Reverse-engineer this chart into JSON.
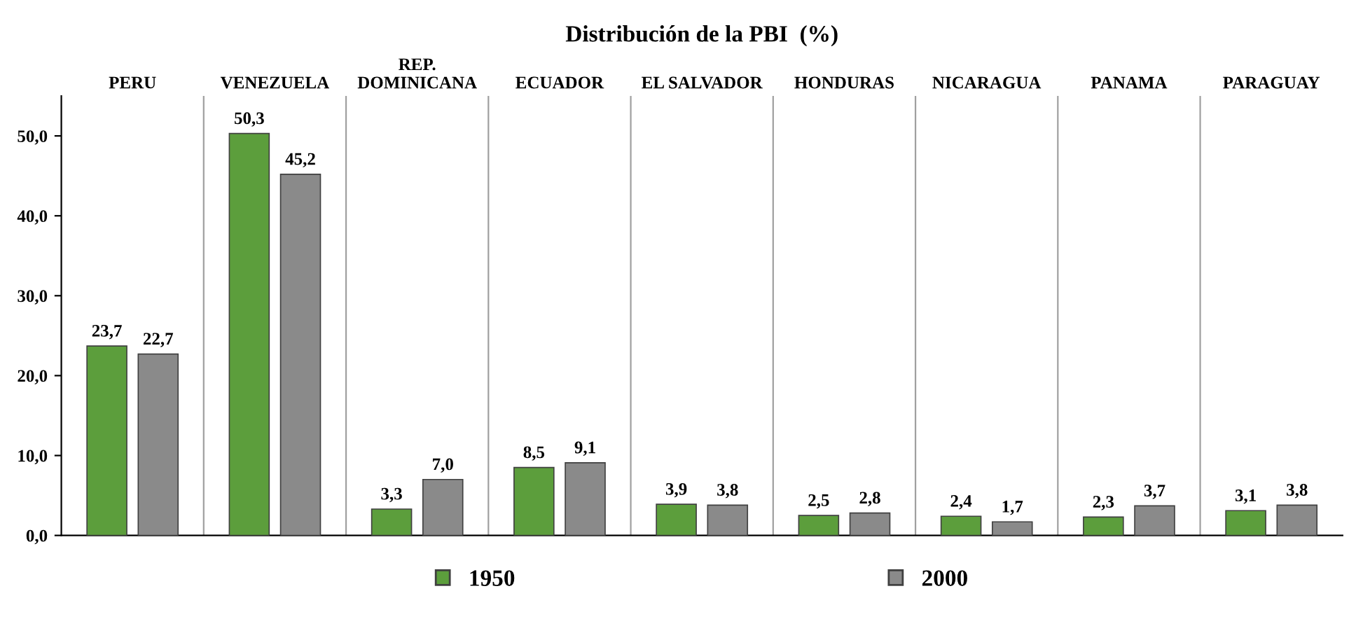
{
  "chart_data": {
    "type": "bar",
    "title": "Distribución de la PBI  (%)",
    "categories": [
      "PERU",
      "VENEZUELA",
      "REP.\nDOMINICANA",
      "ECUADOR",
      "EL SALVADOR",
      "HONDURAS",
      "NICARAGUA",
      "PANAMA",
      "PARAGUAY"
    ],
    "series": [
      {
        "name": "1950",
        "color": "#5c9e3c",
        "values": [
          23.7,
          50.3,
          3.3,
          8.5,
          3.9,
          2.5,
          2.4,
          2.3,
          3.1
        ],
        "value_labels": [
          "23,7",
          "50,3",
          "3,3",
          "8,5",
          "3,9",
          "2,5",
          "2,4",
          "2,3",
          "3,1"
        ]
      },
      {
        "name": "2000",
        "color": "#8a8a8a",
        "values": [
          22.7,
          45.2,
          7.0,
          9.1,
          3.8,
          2.8,
          1.7,
          3.7,
          3.8
        ],
        "value_labels": [
          "22,7",
          "45,2",
          "7,0",
          "9,1",
          "3,8",
          "2,8",
          "1,7",
          "3,7",
          "3,8"
        ]
      }
    ],
    "ylim": [
      0,
      55
    ],
    "yticks": [
      {
        "value": 0,
        "label": "0,0"
      },
      {
        "value": 10,
        "label": "10,0"
      },
      {
        "value": 20,
        "label": "20,0"
      },
      {
        "value": 30,
        "label": "30,0"
      },
      {
        "value": 40,
        "label": "40,0"
      },
      {
        "value": 50,
        "label": "50,0"
      }
    ],
    "grid": "x",
    "legend": "bottom"
  }
}
